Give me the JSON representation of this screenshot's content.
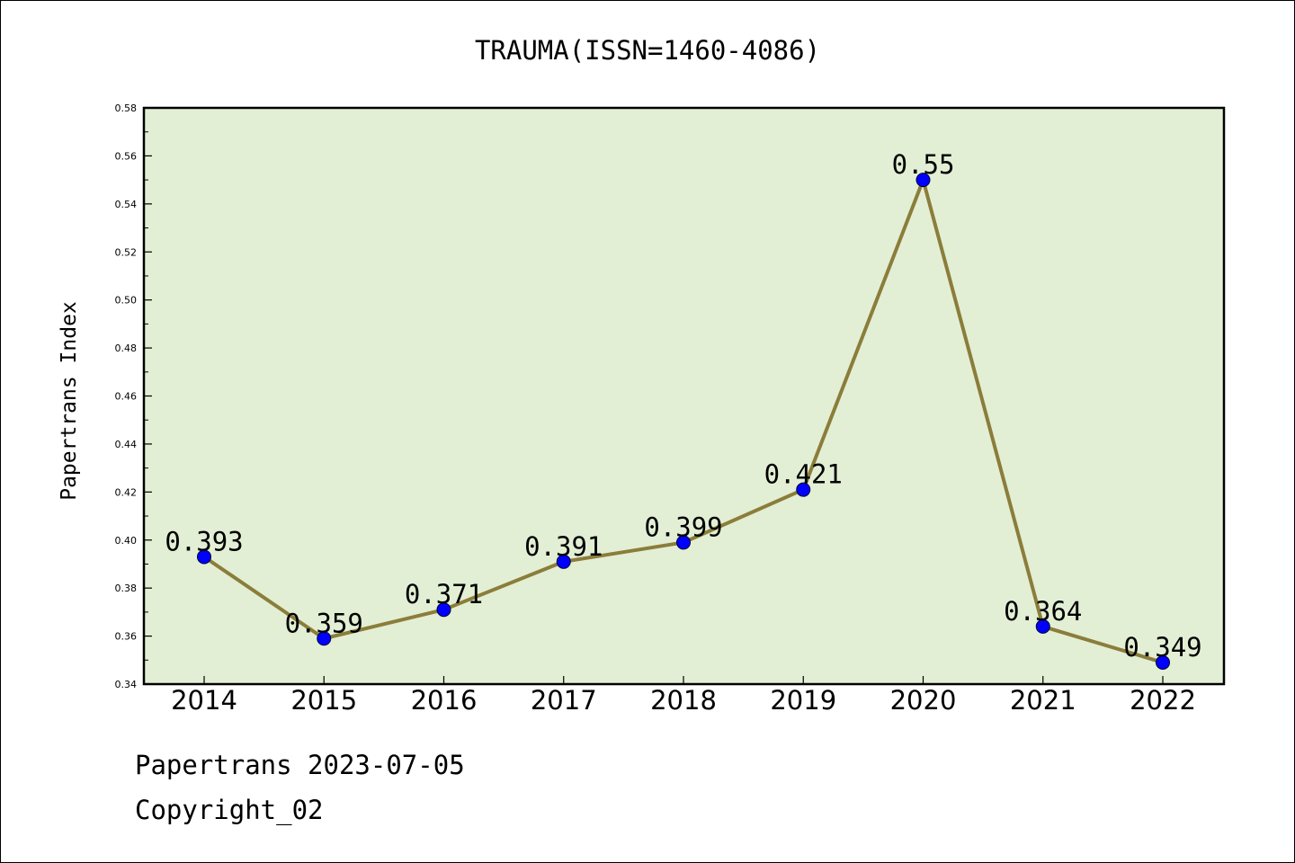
{
  "chart_data": {
    "type": "line",
    "title": "TRAUMA(ISSN=1460-4086)",
    "xlabel": "",
    "ylabel": "Papertrans Index",
    "categories": [
      "2014",
      "2015",
      "2016",
      "2017",
      "2018",
      "2019",
      "2020",
      "2021",
      "2022"
    ],
    "series": [
      {
        "values": [
          0.393,
          0.359,
          0.371,
          0.391,
          0.399,
          0.421,
          0.55,
          0.364,
          0.349
        ],
        "labels": [
          "0.393",
          "0.359",
          "0.371",
          "0.391",
          "0.399",
          "0.421",
          "0.55",
          "0.364",
          "0.349"
        ],
        "line_color": "#8b7d3a",
        "marker_color": "#0000ff"
      }
    ],
    "ylim": [
      0.34,
      0.58
    ],
    "yticks": [
      "0.34",
      "0.36",
      "0.38",
      "0.40",
      "0.42",
      "0.44",
      "0.46",
      "0.48",
      "0.50",
      "0.52",
      "0.54",
      "0.56",
      "0.58"
    ],
    "grid": false,
    "legend": "none",
    "plot_background": "#e2efd5"
  },
  "footer": {
    "source": "Papertrans 2023-07-05",
    "copyright": "Copyright_02"
  }
}
